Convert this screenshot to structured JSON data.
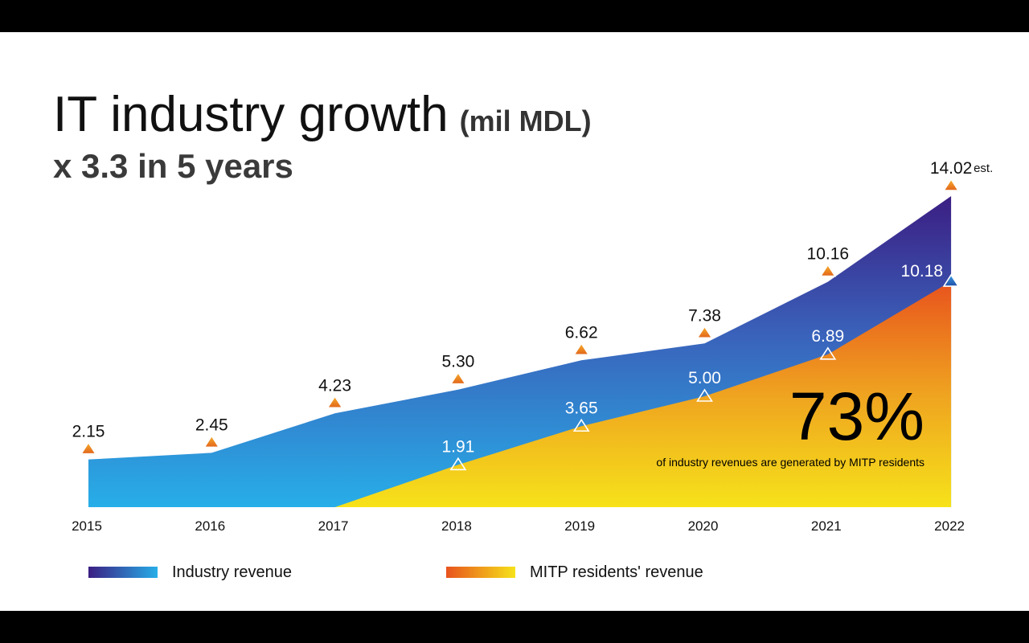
{
  "title": "IT industry growth",
  "title_unit": "(mil MDL)",
  "subtitle": "x 3.3 in 5 years",
  "highlight": {
    "value": "73%",
    "note": "of industry revenues are generated by MITP residents"
  },
  "legend": [
    {
      "label": "Industry revenue",
      "colors": [
        "#3b1e83",
        "#27aee8"
      ]
    },
    {
      "label": "MITP residents' revenue",
      "colors": [
        "#e8531d",
        "#f6e21a"
      ]
    }
  ],
  "chart_data": {
    "type": "area",
    "categories": [
      "2015",
      "2016",
      "2017",
      "2018",
      "2019",
      "2020",
      "2021",
      "2022"
    ],
    "series": [
      {
        "name": "Industry revenue",
        "values": [
          2.15,
          2.45,
          4.23,
          5.3,
          6.62,
          7.38,
          10.16,
          14.02
        ],
        "labels": [
          "2.15",
          "2.45",
          "4.23",
          "5.30",
          "6.62",
          "7.38",
          "10.16",
          "14.02"
        ]
      },
      {
        "name": "MITP residents' revenue",
        "values": [
          null,
          null,
          0,
          1.91,
          3.65,
          5.0,
          6.89,
          10.18
        ],
        "labels": [
          "",
          "",
          "",
          "1.91",
          "3.65",
          "5.00",
          "6.89",
          "10.18"
        ]
      }
    ],
    "annotations": [
      {
        "category": "2022",
        "text": "est."
      }
    ],
    "ylim": [
      0,
      14.02
    ],
    "grid": false,
    "legend_position": "bottom"
  }
}
